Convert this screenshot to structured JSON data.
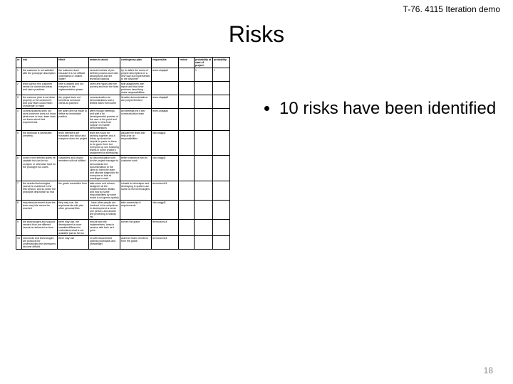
{
  "header_tag": "T-76. 4115 Iteration demo",
  "slide_title": "Risks",
  "page_number": "18",
  "bullet_1": "10 risks have been identified",
  "columns": [
    "nr",
    "risk",
    "effect",
    "means to avoid",
    "contingency plan",
    "responsible",
    "review",
    "probability at start of project",
    "probability"
  ],
  "rows": [
    {
      "nr": "1",
      "risk": "the customer is not satisfied with the prototype description",
      "effect": "the customer does because it is not difficult understand or related matter",
      "avoid": "several reviews of pre-defined process and roles descriptions and the technical backlog",
      "cont": "try to define the users of project descriptions in a new way but implemented to the customer",
      "resp": "team-ohjaaja1",
      "rev": "",
      "p1": "1",
      "p2": "1"
    },
    {
      "nr": "2",
      "risk": "team cannot find customer needs for connected ideas and users practices",
      "effect": "time is wasted and not everyone is the implementation phase",
      "avoid": "users are happy with the journey and from the lines",
      "cont": "split assignment with report and that other performs describing - share responsibilities",
      "resp": "",
      "rev": "",
      "p1": "",
      "p2": ""
    },
    {
      "nr": "3",
      "risk": "the common plan is not done properly or the customer's and your team could mean knowledge to make",
      "effect": "the project does not benefit as someone needs as planned",
      "avoid": "communication via demonstrations and a limited batch from some",
      "cont": "iterative demonstrations are project finished",
      "resp": "team-ohjaaja2",
      "rev": "",
      "p1": "",
      "p2": ""
    },
    {
      "nr": "4",
      "risk": "communications does not work someone does not know what more or less, team does not know about their requirements",
      "effect": "the sprint are not made to define an immediate position",
      "avoid": "after enough meetings and wait a lot developmental process of the user in the point and scripts in mind from support on mobile demonstrations",
      "cont": "all meetings etc if two communication team",
      "resp": "team-ohjaaja3",
      "rev": "",
      "p1": "",
      "p2": ""
    },
    {
      "nr": "5",
      "risk": "the workload is distributed unevenly",
      "effect": "team members are frustrated and follow and everyone does the project",
      "avoid": "team set hours for working together and a follow up should be helpful for parts on there to be given them but everyone up one following teams in some project's assignment at scheduling",
      "cont": "allocate the team and help prior on responsibilities",
      "resp": "otto-majgd2",
      "rev": "",
      "p1": "",
      "p2": ""
    },
    {
      "nr": "6",
      "risk": "some of the defined spirits be capable but can be too complex or otherwise hard for the prototype too users",
      "effect": "customers and project members will not fulfilled",
      "avoid": "try discontinuation both for the project manager to demonstrate the documentation to the client to meet the team and allocate diagnostic for everyone so that at meetings to read",
      "cont": "better customize and its customer work",
      "resp": "otto-majgd2",
      "rev": "",
      "p1": "",
      "p2": ""
    },
    {
      "nr": "7",
      "risk": "the needed technologies cannot be mastered in the first version, and so under the prototype description so that",
      "effect": "the grade committee from",
      "avoid": "take some sort relearn designers at the implementation details and how do some responsibilities by some board is not gonna quickly",
      "cont": "a basis for developer and developing is system use same on the technologies",
      "resp": "teemuhom24",
      "rev": "",
      "p1": "",
      "p2": ""
    },
    {
      "nr": "8",
      "risk": "important personnel team the team may idle cannot be reached",
      "effect": "they may use, the requirements with plan other personal files",
      "avoid": "- have other people are involved in the ubiquitous in development is never one person, and double line protecting a holiday etc",
      "cont": "take ownership of requirements",
      "resp": "otto-majgd2",
      "rev": "",
      "p1": "",
      "p2": ""
    },
    {
      "nr": "9",
      "risk": "the technologies and support needed from are different cannot be delivered on time",
      "effect": "there may use, the development is more unstable/different to understand what is not available just as far too",
      "avoid": "ensure with the implementers, keep in session with their as it goes",
      "cont": "screen the grade",
      "resp": "teemuhom24",
      "rev": "",
      "p1": "",
      "p2": ""
    },
    {
      "nr": "10",
      "risk": "used tools and technologies are products for understanding the developers become difficult",
      "effect": "there may use",
      "avoid": "on well documented options (workloads and knowledge)",
      "cont": "ask from team members from the grade",
      "resp": "teemuhom24",
      "rev": "",
      "p1": "",
      "p2": ""
    }
  ]
}
